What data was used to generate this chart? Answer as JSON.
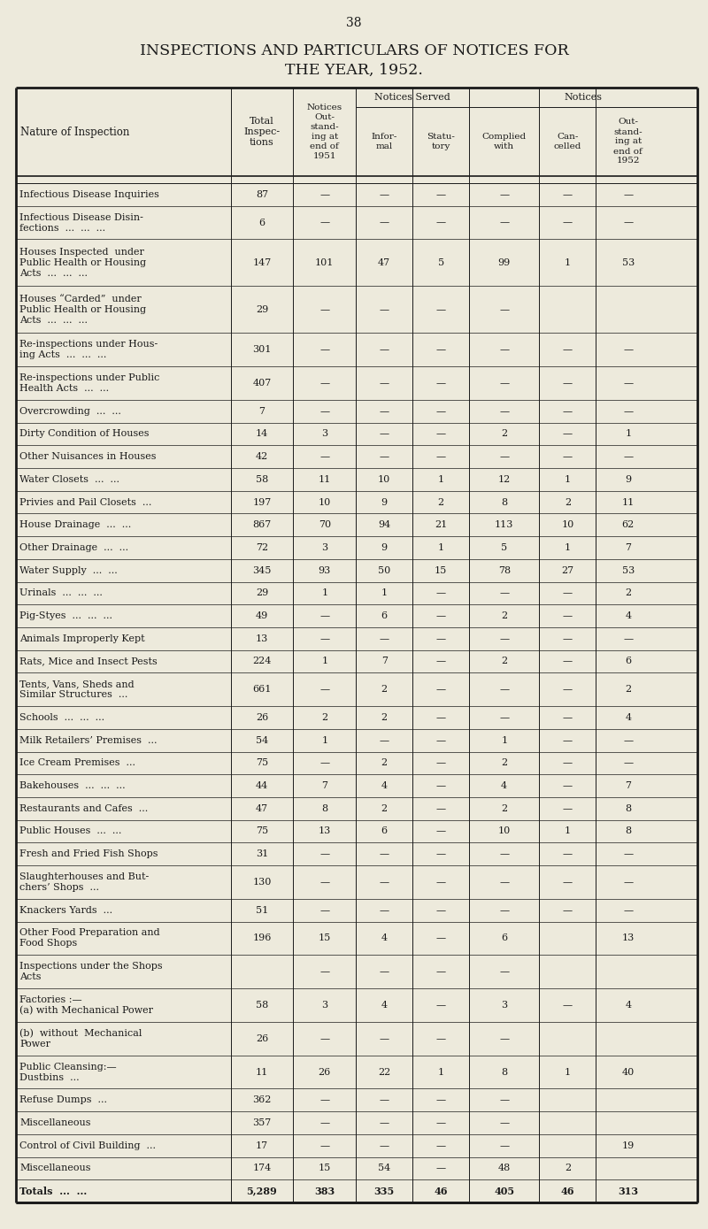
{
  "page_number": "38",
  "title_line1": "INSPECTIONS AND PARTICULARS OF NOTICES FOR",
  "title_line2": "THE YEAR, 1952.",
  "bg_color": "#edeadc",
  "text_color": "#1a1a1a",
  "line_color": "#1a1a1a",
  "rows": [
    [
      "Infectious Disease Inquiries",
      "87",
      "—",
      "—",
      "—",
      "—",
      "—",
      "—"
    ],
    [
      "Infectious Disease Disin-\n    fections  ...  ...  ...",
      "6",
      "—",
      "—",
      "—",
      "—",
      "—",
      "—"
    ],
    [
      "Houses Inspected  under\n    Public Health or Housing\n    Acts  ...  ...  ...",
      "147",
      "101",
      "47",
      "5",
      "99",
      "1",
      "53"
    ],
    [
      "Houses “Carded”  under\n    Public Health or Housing\n    Acts  ...  ...  ...",
      "29",
      "—",
      "—",
      "—",
      "—",
      "",
      ""
    ],
    [
      "Re-inspections under Hous-\n    ing Acts  ...  ...  ...",
      "301",
      "—",
      "—",
      "—",
      "—",
      "—",
      "—"
    ],
    [
      "Re-inspections under Public\n    Health Acts  ...  ...",
      "407",
      "—",
      "—",
      "—",
      "—",
      "—",
      "—"
    ],
    [
      "Overcrowding  ...  ...",
      "7",
      "—",
      "—",
      "—",
      "—",
      "—",
      "—"
    ],
    [
      "Dirty Condition of Houses",
      "14",
      "3",
      "—",
      "—",
      "2",
      "—",
      "1"
    ],
    [
      "Other Nuisances in Houses",
      "42",
      "—",
      "—",
      "—",
      "—",
      "—",
      "—"
    ],
    [
      "Water Closets  ...  ...",
      "58",
      "11",
      "10",
      "1",
      "12",
      "1",
      "9"
    ],
    [
      "Privies and Pail Closets  ...",
      "197",
      "10",
      "9",
      "2",
      "8",
      "2",
      "11"
    ],
    [
      "House Drainage  ...  ...",
      "867",
      "70",
      "94",
      "21",
      "113",
      "10",
      "62"
    ],
    [
      "Other Drainage  ...  ...",
      "72",
      "3",
      "9",
      "1",
      "5",
      "1",
      "7"
    ],
    [
      "Water Supply  ...  ...",
      "345",
      "93",
      "50",
      "15",
      "78",
      "27",
      "53"
    ],
    [
      "Urinals  ...  ...  ...",
      "29",
      "1",
      "1",
      "—",
      "—",
      "—",
      "2"
    ],
    [
      "Pig-Styes  ...  ...  ...",
      "49",
      "—",
      "6",
      "—",
      "2",
      "—",
      "4"
    ],
    [
      "Animals Improperly Kept",
      "13",
      "—",
      "—",
      "—",
      "—",
      "—",
      "—"
    ],
    [
      "Rats, Mice and Insect Pests",
      "224",
      "1",
      "7",
      "—",
      "2",
      "—",
      "6"
    ],
    [
      "Tents, Vans, Sheds and\n    Similar Structures  ...",
      "661",
      "—",
      "2",
      "—",
      "—",
      "—",
      "2"
    ],
    [
      "Schools  ...  ...  ...",
      "26",
      "2",
      "2",
      "—",
      "—",
      "—",
      "4"
    ],
    [
      "Milk Retailers’ Premises  ...",
      "54",
      "1",
      "—",
      "—",
      "1",
      "—",
      "—"
    ],
    [
      "Ice Cream Premises  ...",
      "75",
      "—",
      "2",
      "—",
      "2",
      "—",
      "—"
    ],
    [
      "Bakehouses  ...  ...  ...",
      "44",
      "7",
      "4",
      "—",
      "4",
      "—",
      "7"
    ],
    [
      "Restaurants and Cafes  ...",
      "47",
      "8",
      "2",
      "—",
      "2",
      "—",
      "8"
    ],
    [
      "Public Houses  ...  ...",
      "75",
      "13",
      "6",
      "—",
      "10",
      "1",
      "8"
    ],
    [
      "Fresh and Fried Fish Shops",
      "31",
      "—",
      "—",
      "—",
      "—",
      "—",
      "—"
    ],
    [
      "Slaughterhouses and But-\n    chers’ Shops  ...",
      "130",
      "—",
      "—",
      "—",
      "—",
      "—",
      "—"
    ],
    [
      "Knackers Yards  ...",
      "51",
      "—",
      "—",
      "—",
      "—",
      "—",
      "—"
    ],
    [
      "Other Food Preparation and\n    Food Shops",
      "196",
      "15",
      "4",
      "—",
      "6",
      "",
      "13"
    ],
    [
      "Inspections under the Shops\n    Acts",
      "",
      "—",
      "—",
      "—",
      "—",
      "",
      ""
    ],
    [
      "Factories :—\n    (a) with Mechanical Power",
      "58",
      "3",
      "4",
      "—",
      "3",
      "—",
      "4"
    ],
    [
      "(b)  without  Mechanical\n    Power",
      "26",
      "—",
      "—",
      "—",
      "—",
      "",
      ""
    ],
    [
      "Public Cleansing:—\n    Dustbins  ...",
      "11",
      "26",
      "22",
      "1",
      "8",
      "1",
      "40"
    ],
    [
      "Refuse Dumps  ...",
      "362",
      "—",
      "—",
      "—",
      "—",
      "",
      ""
    ],
    [
      "Miscellaneous",
      "357",
      "—",
      "—",
      "—",
      "—",
      "",
      ""
    ],
    [
      "Control of Civil Building  ...",
      "17",
      "—",
      "—",
      "—",
      "—",
      "",
      "19"
    ],
    [
      "Miscellaneous",
      "174",
      "15",
      "54",
      "—",
      "48",
      "2",
      ""
    ],
    [
      "Totals  ...  ...",
      "5,289",
      "383",
      "335",
      "46",
      "405",
      "46",
      "313"
    ]
  ]
}
